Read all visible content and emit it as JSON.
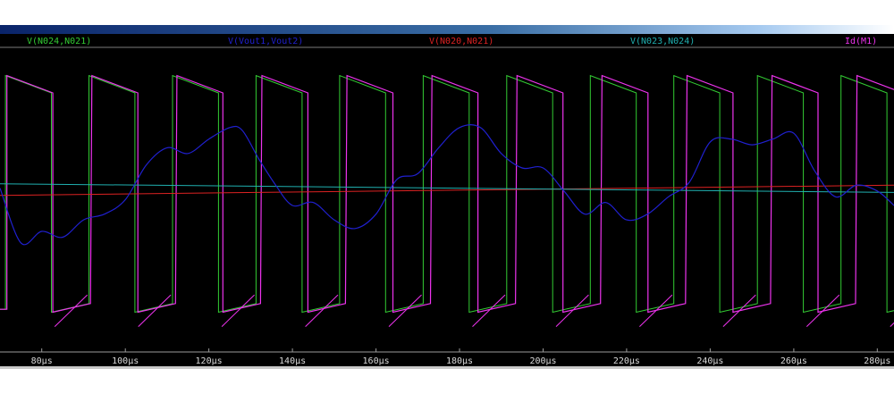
{
  "chart_data": {
    "type": "line",
    "legend_position": "top",
    "grid": false,
    "xlim": [
      70,
      284
    ],
    "ylim": [
      0,
      1
    ],
    "x_ticks": [
      {
        "value": 80,
        "label": "80µs"
      },
      {
        "value": 100,
        "label": "100µs"
      },
      {
        "value": 120,
        "label": "120µs"
      },
      {
        "value": 140,
        "label": "140µs"
      },
      {
        "value": 160,
        "label": "160µs"
      },
      {
        "value": 180,
        "label": "180µs"
      },
      {
        "value": 200,
        "label": "200µs"
      },
      {
        "value": 220,
        "label": "220µs"
      },
      {
        "value": 240,
        "label": "240µs"
      },
      {
        "value": 260,
        "label": "260µs"
      },
      {
        "value": 280,
        "label": "280µs"
      }
    ],
    "switching": {
      "period_us": 20,
      "first_rise_us": 71.3,
      "on_time_us": 11.0,
      "high_level": 0.9,
      "low_level": 0.12,
      "droop": 0.03
    },
    "series": [
      {
        "name": "V(N024,N021)",
        "color": "#33cc33",
        "kind": "square",
        "values": []
      },
      {
        "name": "V(Vout1,Vout2)",
        "color": "#2020d0",
        "kind": "smooth",
        "x": [
          70,
          75,
          80,
          85,
          90,
          95,
          100,
          105,
          110,
          115,
          120,
          125,
          128,
          132,
          136,
          140,
          145,
          150,
          155,
          160,
          165,
          170,
          175,
          180,
          185,
          190,
          195,
          200,
          205,
          210,
          215,
          220,
          225,
          230,
          235,
          240,
          245,
          250,
          255,
          260,
          265,
          270,
          275,
          280,
          284
        ],
        "values": [
          0.54,
          0.35,
          0.39,
          0.37,
          0.43,
          0.45,
          0.5,
          0.62,
          0.68,
          0.66,
          0.71,
          0.75,
          0.74,
          0.64,
          0.55,
          0.48,
          0.49,
          0.43,
          0.4,
          0.45,
          0.57,
          0.59,
          0.68,
          0.75,
          0.75,
          0.66,
          0.61,
          0.61,
          0.53,
          0.45,
          0.49,
          0.43,
          0.45,
          0.51,
          0.56,
          0.7,
          0.71,
          0.69,
          0.71,
          0.73,
          0.6,
          0.51,
          0.55,
          0.53,
          0.48
        ]
      },
      {
        "name": "V(N020,N021)",
        "color": "#dd2222",
        "kind": "line",
        "x": [
          70,
          284
        ],
        "values": [
          0.515,
          0.55
        ]
      },
      {
        "name": "V(N023,N024)",
        "color": "#20b0b0",
        "kind": "line",
        "x": [
          70,
          284
        ],
        "values": [
          0.555,
          0.525
        ]
      },
      {
        "name": "Id(M1)",
        "color": "#ee33ee",
        "kind": "square",
        "values": []
      }
    ]
  }
}
